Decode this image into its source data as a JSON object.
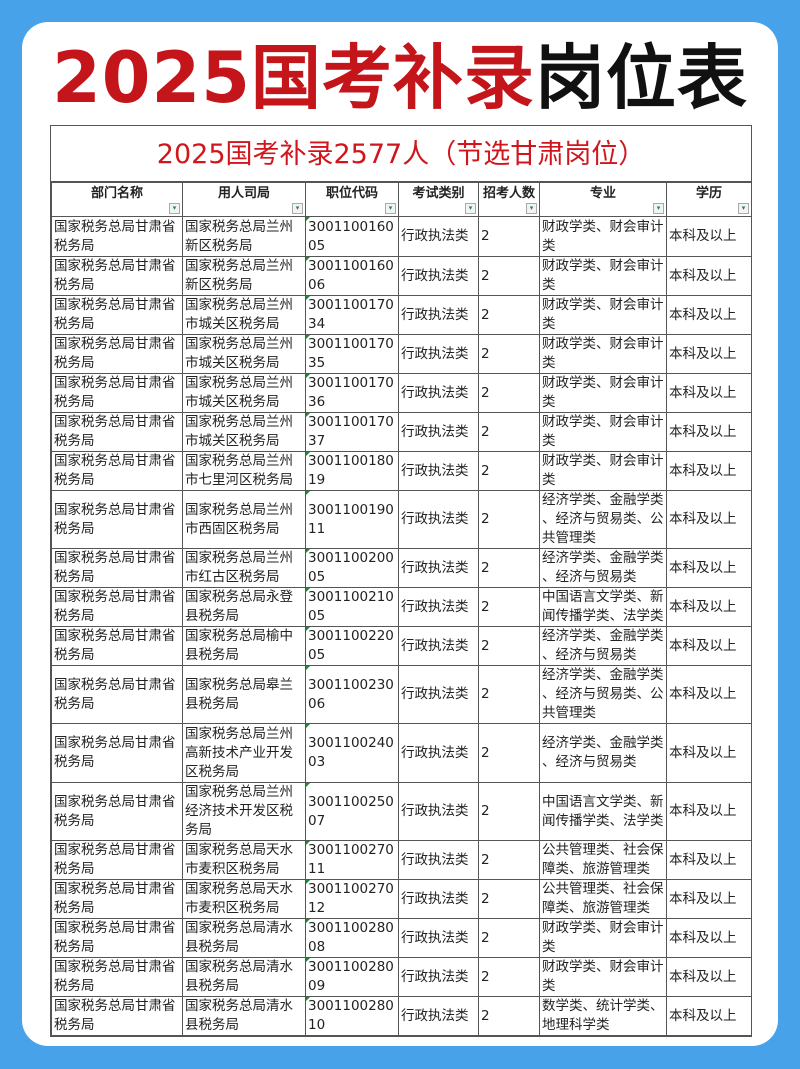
{
  "title": {
    "red": "2025国考补录",
    "black": "岗位表"
  },
  "subtitle": "2025国考补录2577人（节选甘肃岗位）",
  "colors": {
    "background": "#47a2ea",
    "title_red": "#c4151b",
    "subtitle_red": "#d0161c",
    "filter_green": "#1a8a3a"
  },
  "headers": [
    "部门名称",
    "用人司局",
    "职位代码",
    "考试类别",
    "招考人数",
    "专业",
    "学历"
  ],
  "filter_icon": "dropdown-filter-icon",
  "rows": [
    [
      "国家税务总局甘肃省\n税务局",
      "国家税务总局兰州\n新区税务局",
      "3001100160\n05",
      "行政执法类",
      "2",
      "财政学类、财会审计\n类",
      "本科及以上"
    ],
    [
      "国家税务总局甘肃省\n税务局",
      "国家税务总局兰州\n新区税务局",
      "3001100160\n06",
      "行政执法类",
      "2",
      "财政学类、财会审计\n类",
      "本科及以上"
    ],
    [
      "国家税务总局甘肃省\n税务局",
      "国家税务总局兰州\n市城关区税务局",
      "3001100170\n34",
      "行政执法类",
      "2",
      "财政学类、财会审计\n类",
      "本科及以上"
    ],
    [
      "国家税务总局甘肃省\n税务局",
      "国家税务总局兰州\n市城关区税务局",
      "3001100170\n35",
      "行政执法类",
      "2",
      "财政学类、财会审计\n类",
      "本科及以上"
    ],
    [
      "国家税务总局甘肃省\n税务局",
      "国家税务总局兰州\n市城关区税务局",
      "3001100170\n36",
      "行政执法类",
      "2",
      "财政学类、财会审计\n类",
      "本科及以上"
    ],
    [
      "国家税务总局甘肃省\n税务局",
      "国家税务总局兰州\n市城关区税务局",
      "3001100170\n37",
      "行政执法类",
      "2",
      "财政学类、财会审计\n类",
      "本科及以上"
    ],
    [
      "国家税务总局甘肃省\n税务局",
      "国家税务总局兰州\n市七里河区税务局",
      "3001100180\n19",
      "行政执法类",
      "2",
      "财政学类、财会审计\n类",
      "本科及以上"
    ],
    [
      "国家税务总局甘肃省\n税务局",
      "国家税务总局兰州\n市西固区税务局",
      "3001100190\n11",
      "行政执法类",
      "2",
      "经济学类、金融学类\n、经济与贸易类、公\n共管理类",
      "本科及以上"
    ],
    [
      "国家税务总局甘肃省\n税务局",
      "国家税务总局兰州\n市红古区税务局",
      "3001100200\n05",
      "行政执法类",
      "2",
      "经济学类、金融学类\n、经济与贸易类",
      "本科及以上"
    ],
    [
      "国家税务总局甘肃省\n税务局",
      "国家税务总局永登\n县税务局",
      "3001100210\n05",
      "行政执法类",
      "2",
      "中国语言文学类、新\n闻传播学类、法学类",
      "本科及以上"
    ],
    [
      "国家税务总局甘肃省\n税务局",
      "国家税务总局榆中\n县税务局",
      "3001100220\n05",
      "行政执法类",
      "2",
      "经济学类、金融学类\n、经济与贸易类",
      "本科及以上"
    ],
    [
      "国家税务总局甘肃省\n税务局",
      "国家税务总局皋兰\n县税务局",
      "3001100230\n06",
      "行政执法类",
      "2",
      "经济学类、金融学类\n、经济与贸易类、公\n共管理类",
      "本科及以上"
    ],
    [
      "国家税务总局甘肃省\n税务局",
      "国家税务总局兰州\n高新技术产业开发\n区税务局",
      "3001100240\n03",
      "行政执法类",
      "2",
      "经济学类、金融学类\n、经济与贸易类",
      "本科及以上"
    ],
    [
      "国家税务总局甘肃省\n税务局",
      "国家税务总局兰州\n经济技术开发区税\n务局",
      "3001100250\n07",
      "行政执法类",
      "2",
      "中国语言文学类、新\n闻传播学类、法学类",
      "本科及以上"
    ],
    [
      "国家税务总局甘肃省\n税务局",
      "国家税务总局天水\n市麦积区税务局",
      "3001100270\n11",
      "行政执法类",
      "2",
      "公共管理类、社会保\n障类、旅游管理类",
      "本科及以上"
    ],
    [
      "国家税务总局甘肃省\n税务局",
      "国家税务总局天水\n市麦积区税务局",
      "3001100270\n12",
      "行政执法类",
      "2",
      "公共管理类、社会保\n障类、旅游管理类",
      "本科及以上"
    ],
    [
      "国家税务总局甘肃省\n税务局",
      "国家税务总局清水\n县税务局",
      "3001100280\n08",
      "行政执法类",
      "2",
      "财政学类、财会审计\n类",
      "本科及以上"
    ],
    [
      "国家税务总局甘肃省\n税务局",
      "国家税务总局清水\n县税务局",
      "3001100280\n09",
      "行政执法类",
      "2",
      "财政学类、财会审计\n类",
      "本科及以上"
    ],
    [
      "国家税务总局甘肃省\n税务局",
      "国家税务总局清水\n县税务局",
      "3001100280\n10",
      "行政执法类",
      "2",
      "数学类、统计学类、\n地理科学类",
      "本科及以上"
    ]
  ]
}
